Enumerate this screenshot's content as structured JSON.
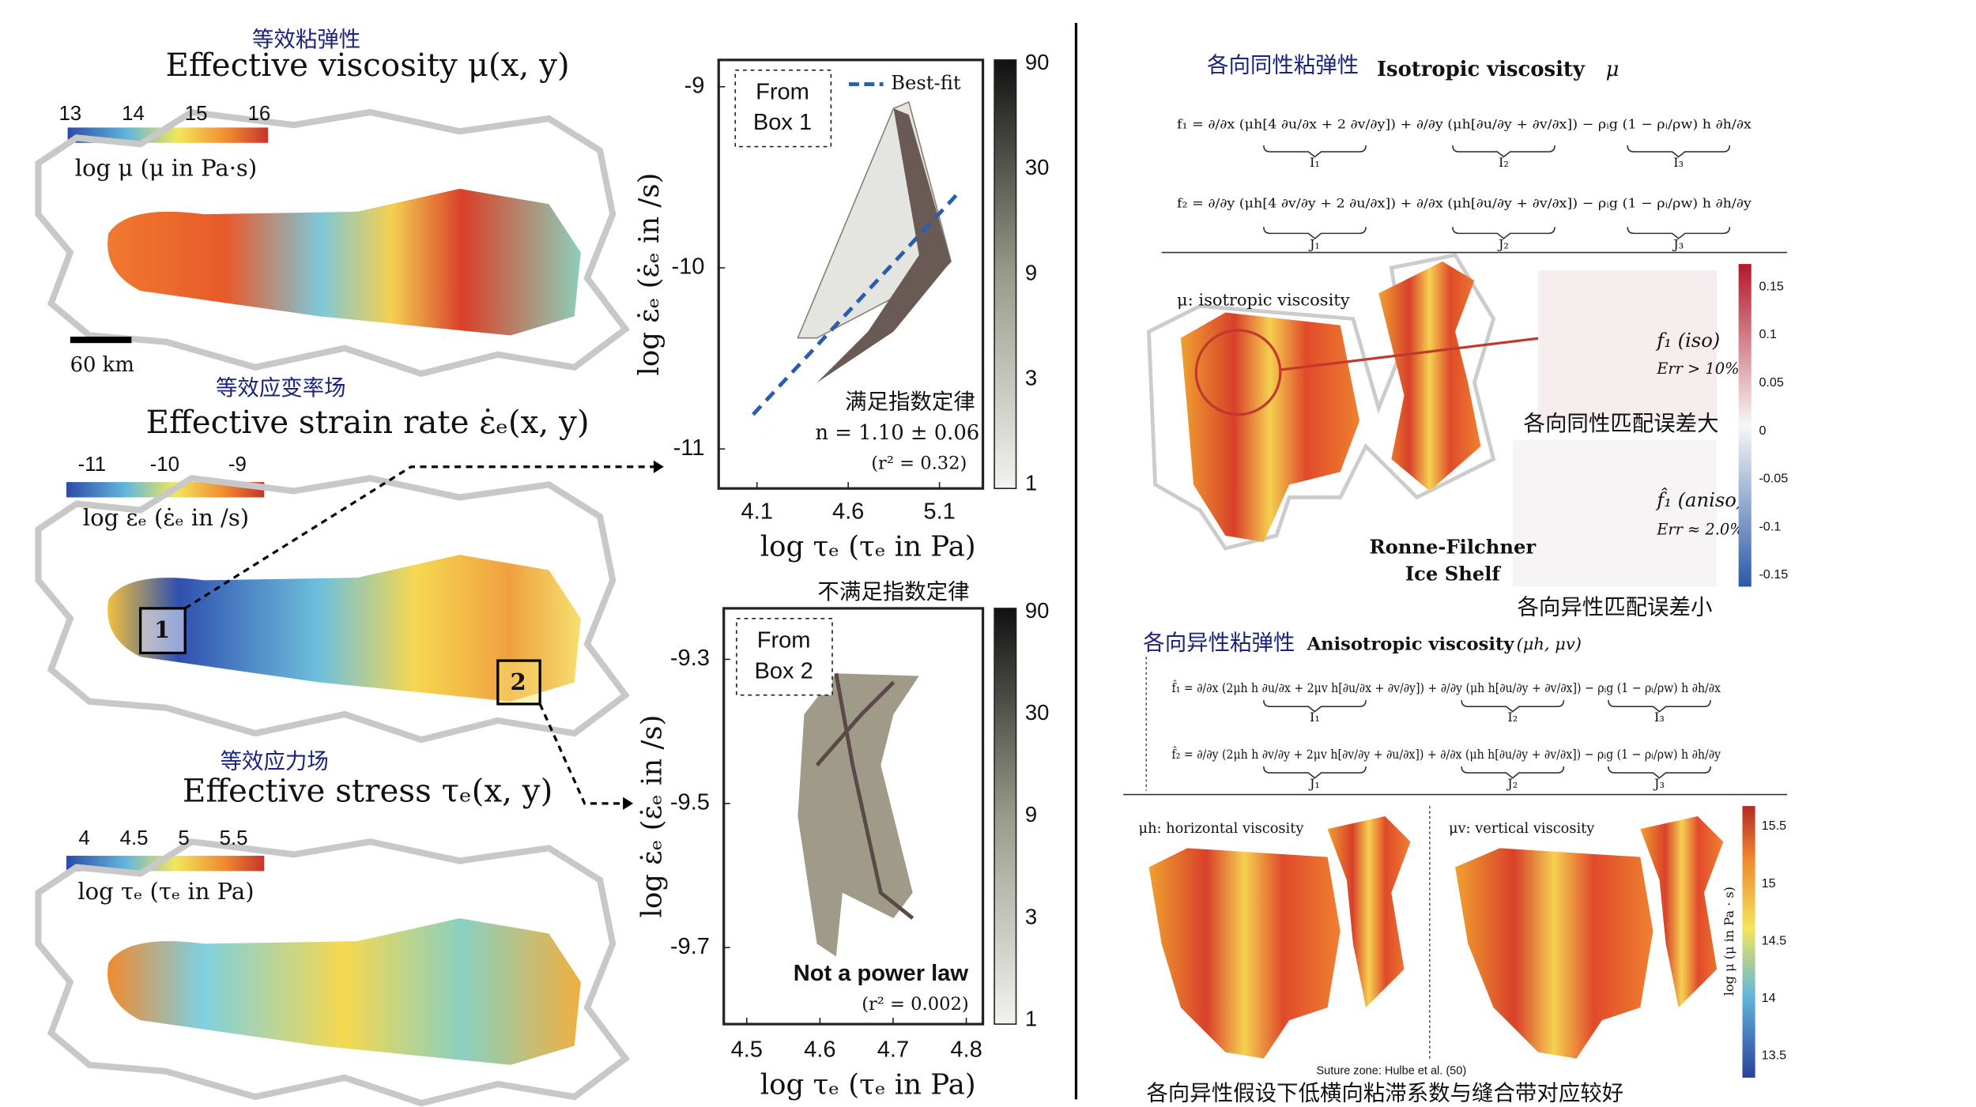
{
  "left": {
    "viscosity": {
      "title_cn": "等效粘弹性",
      "title": "Effective viscosity μ(x, y)",
      "colorbar_ticks": [
        13,
        14,
        15,
        16
      ],
      "colorbar_label": "log μ (μ in Pa·s)",
      "scale_bar": "60 km"
    },
    "strain_rate": {
      "title_cn": "等效应变率场",
      "title": "Effective strain rate ε̇ₑ(x, y)",
      "colorbar_ticks": [
        -11,
        -10,
        -9
      ],
      "colorbar_label": "log ε̇ₑ (ε̇ₑ in /s)",
      "boxes": [
        "1",
        "2"
      ]
    },
    "stress": {
      "title_cn": "等效应力场",
      "title": "Effective stress τₑ(x, y)",
      "colorbar_ticks": [
        4,
        4.5,
        5,
        5.5
      ],
      "colorbar_label": "log τₑ (τₑ in Pa)"
    }
  },
  "middle": {
    "box1": {
      "box_label": [
        "From",
        "Box 1"
      ],
      "legend": "Best-fit",
      "yticks": [
        -9,
        -10,
        -11
      ],
      "xticks": [
        4.1,
        4.6,
        5.1
      ],
      "colorbar_ticks": [
        90,
        30,
        9,
        3,
        1
      ],
      "ylabel": "log ε̇ₑ (ε̇ₑ in /s)",
      "xlabel": "log τₑ (τₑ in Pa)",
      "annotation_cn": "满足指数定律",
      "fit": "n = 1.10 ± 0.06",
      "r2": "(r² = 0.32)"
    },
    "box2": {
      "title_cn": "不满足指数定律",
      "box_label": [
        "From",
        "Box 2"
      ],
      "yticks": [
        -9.3,
        -9.5,
        -9.7
      ],
      "xticks": [
        4.5,
        4.6,
        4.7,
        4.8
      ],
      "colorbar_ticks": [
        90,
        30,
        9,
        3,
        1
      ],
      "ylabel": "log ε̇ₑ (ε̇ₑ in /s)",
      "xlabel": "log τₑ (τₑ in Pa)",
      "annotation": "Not a power law",
      "r2": "(r² = 0.002)"
    }
  },
  "right": {
    "isotropic": {
      "title_cn": "各向同性粘弹性",
      "title": "Isotropic viscosity",
      "symbol": "μ",
      "eq1": "f₁ = ∂/∂x (μh[4 ∂u/∂x + 2 ∂v/∂y]) + ∂/∂y (μh[∂u/∂y + ∂v/∂x]) − ρᵢg (1 − ρᵢ/ρw) h ∂h/∂x",
      "eq1_terms": [
        "I₁",
        "I₂",
        "I₃"
      ],
      "eq2": "f₂ = ∂/∂y (μh[4 ∂v/∂y + 2 ∂u/∂x]) + ∂/∂x (μh[∂u/∂y + ∂v/∂x]) − ρᵢg (1 − ρᵢ/ρw) h ∂h/∂y",
      "eq2_terms": [
        "J₁",
        "J₂",
        "J₃"
      ],
      "map_label": "μ: isotropic viscosity",
      "iso_label": "f₁ (iso)",
      "iso_err": "Err > 10%",
      "aniso_label": "f̂₁ (aniso)",
      "aniso_err": "Err ≈ 2.0%",
      "shelf": [
        "Ronne-Filchner",
        "Ice Shelf"
      ],
      "colorbar_ticks": [
        0.15,
        0.1,
        0.05,
        0,
        -0.05,
        -0.1,
        -0.15
      ],
      "note_iso_cn": "各向同性匹配误差大",
      "note_aniso_cn": "各向异性匹配误差小"
    },
    "anisotropic": {
      "title_cn": "各向异性粘弹性",
      "title": "Anisotropic viscosity",
      "symbol": "(μh, μv)",
      "eq1": "f̂₁ = ∂/∂x (2μh h ∂u/∂x + 2μv h[∂u/∂x + ∂v/∂y]) + ∂/∂y (μh h[∂u/∂y + ∂v/∂x]) − ρᵢg (1 − ρᵢ/ρw) h ∂h/∂x",
      "eq1_terms": [
        "I₁",
        "I₂",
        "I₃"
      ],
      "eq2": "f̂₂ = ∂/∂y (2μh h ∂v/∂y + 2μv h[∂v/∂y + ∂u/∂x]) + ∂/∂x (μh h[∂u/∂y + ∂v/∂x]) − ρᵢg (1 − ρᵢ/ρw) h ∂h/∂y",
      "eq2_terms": [
        "J₁",
        "J₂",
        "J₃"
      ],
      "h_label": "μh: horizontal viscosity",
      "v_label": "μv: vertical viscosity",
      "colorbar_ticks": [
        15.5,
        15,
        14.5,
        14,
        13.5
      ],
      "colorbar_label": "log μ (μ in Pa · s)",
      "suture": "Suture zone: Hulbe et al. (50)",
      "caption_cn": "各向异性假设下低横向粘滞系数与缝合带对应较好"
    }
  }
}
